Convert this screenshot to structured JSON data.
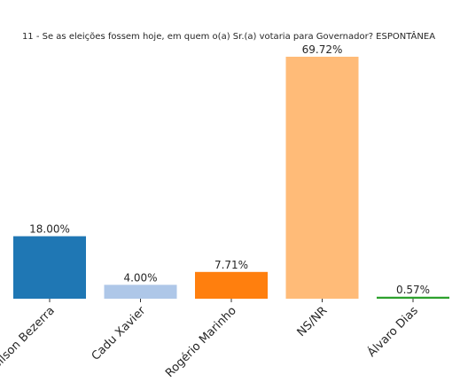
{
  "chart_data": {
    "type": "bar",
    "title": "11 - Se as eleições fossem hoje, em quem o(a) Sr.(a) votaria para Governador? ESPONTÂNEA",
    "xlabel": "",
    "ylabel": "",
    "categories": [
      "Gilson Bezerra",
      "Cadu Xavier",
      "Rogério Marinho",
      "NS/NR",
      "Álvaro Dias"
    ],
    "values": [
      18.0,
      4.0,
      7.71,
      69.72,
      0.57
    ],
    "data_labels": [
      "18.00%",
      "4.00%",
      "7.71%",
      "69.72%",
      "0.57%"
    ],
    "colors": [
      "#1f77b4",
      "#aec7e8",
      "#ff7f0e",
      "#ffbb78",
      "#2ca02c"
    ],
    "ylim": [
      0,
      69.72
    ],
    "grid": false,
    "legend": "none"
  }
}
